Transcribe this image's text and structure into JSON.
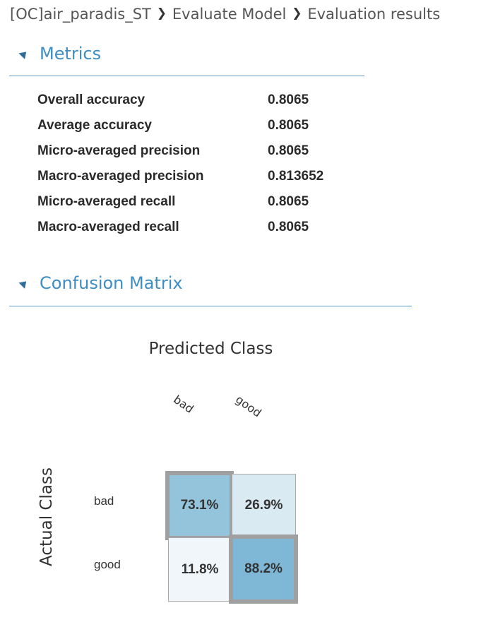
{
  "breadcrumb": {
    "items": [
      "[OC]air_paradis_ST",
      "Evaluate Model",
      "Evaluation results"
    ]
  },
  "metrics_section": {
    "title": "Metrics",
    "rows": [
      {
        "label": "Overall accuracy",
        "value": "0.8065"
      },
      {
        "label": "Average accuracy",
        "value": "0.8065"
      },
      {
        "label": "Micro-averaged precision",
        "value": "0.8065"
      },
      {
        "label": "Macro-averaged precision",
        "value": "0.813652"
      },
      {
        "label": "Micro-averaged recall",
        "value": "0.8065"
      },
      {
        "label": "Macro-averaged recall",
        "value": "0.8065"
      }
    ]
  },
  "confusion_section": {
    "title": "Confusion Matrix",
    "predicted_title": "Predicted Class",
    "actual_title": "Actual Class",
    "columns": [
      "bad",
      "good"
    ],
    "rows": [
      "bad",
      "good"
    ],
    "cells": [
      [
        "73.1%",
        "26.9%"
      ],
      [
        "11.8%",
        "88.2%"
      ]
    ],
    "cell_colors": [
      [
        "#93c4dc",
        "#daeaf2"
      ],
      [
        "#f0f6fa",
        "#7fb8d6"
      ]
    ]
  },
  "colors": {
    "accent": "#3e8ec4",
    "rule": "#5a9bc4"
  }
}
